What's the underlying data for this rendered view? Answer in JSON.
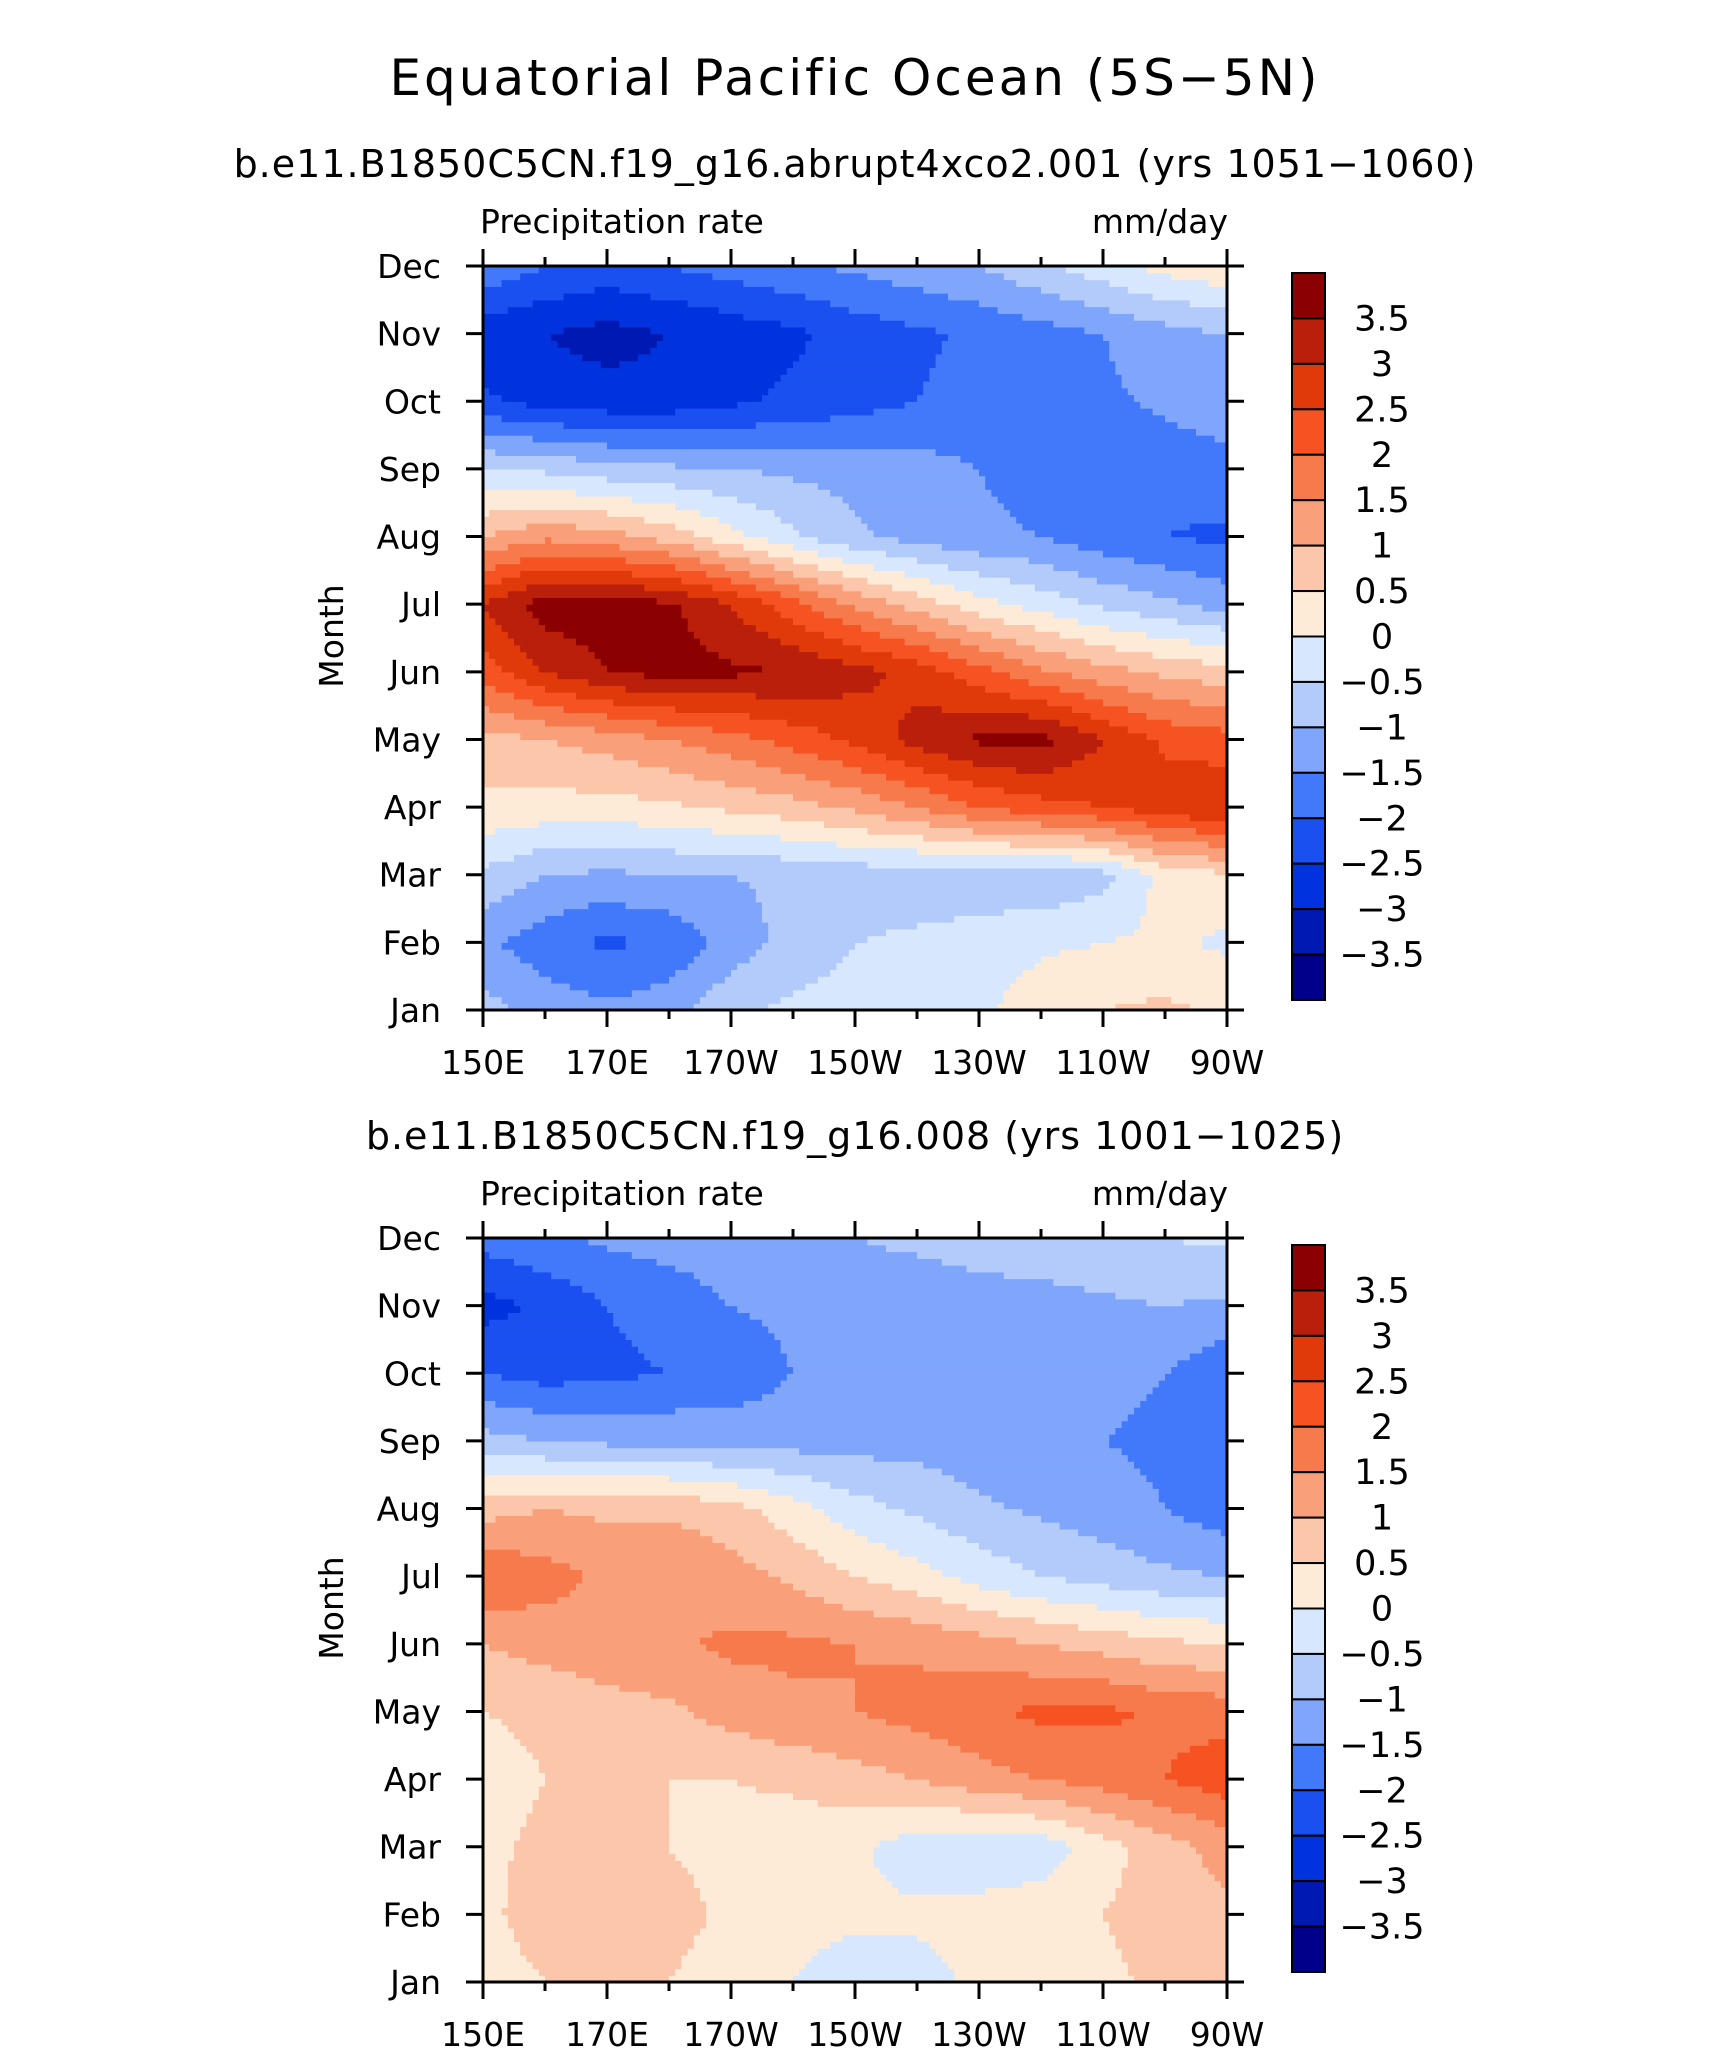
{
  "figure_title": "Equatorial Pacific Ocean (5S−5N)",
  "colors": {
    "levels": [
      "#00008b",
      "#0019b3",
      "#0033dd",
      "#1a4ff0",
      "#4278fa",
      "#7fa6fb",
      "#b3cbfb",
      "#d7e7fd",
      "#fdebd8",
      "#fbc6aa",
      "#f9a07a",
      "#f77a4c",
      "#f65323",
      "#e03a0a",
      "#b91f0a",
      "#8b0000"
    ]
  },
  "chart_data": [
    {
      "type": "heatmap",
      "title": "b.e11.B1850C5CN.f19_g16.abrupt4xco2.001 (yrs 1051−1060)",
      "left_label": "Precipitation rate",
      "right_label": "mm/day",
      "ylabel": "Month",
      "x_ticks": [
        "150E",
        "170E",
        "170W",
        "150W",
        "130W",
        "110W",
        "90W"
      ],
      "y_ticks": [
        "Jan",
        "Feb",
        "Mar",
        "Apr",
        "May",
        "Jun",
        "Jul",
        "Aug",
        "Sep",
        "Oct",
        "Nov",
        "Dec"
      ],
      "x_range_deg_east": [
        150,
        270
      ],
      "y_range_months": [
        1,
        12
      ],
      "colorbar_labels": [
        "3.5",
        "3",
        "2.5",
        "2",
        "1.5",
        "1",
        "0.5",
        "0",
        "−0.5",
        "−1",
        "−1.5",
        "−2",
        "−2.5",
        "−3",
        "−3.5"
      ],
      "grid_x_deg_east": [
        150,
        160,
        170,
        180,
        190,
        200,
        210,
        220,
        230,
        240,
        250,
        260,
        270
      ],
      "values_mm_per_day": [
        [
          -0.8,
          -1.2,
          -1.4,
          -1.2,
          -0.6,
          -0.4,
          -0.3,
          -0.2,
          -0.1,
          0.3,
          0.5,
          0.6,
          0.4
        ],
        [
          -1.4,
          -1.8,
          -2.1,
          -1.9,
          -1.3,
          -0.8,
          -0.5,
          -0.4,
          -0.3,
          -0.1,
          0.0,
          0.1,
          -0.1
        ],
        [
          -0.6,
          -1.0,
          -1.1,
          -1.0,
          -1.0,
          -0.9,
          -0.8,
          -0.8,
          -0.8,
          -0.9,
          -0.7,
          0.2,
          0.4
        ],
        [
          0.4,
          0.3,
          0.3,
          0.4,
          0.6,
          0.8,
          1.1,
          1.5,
          2.0,
          2.3,
          2.5,
          2.8,
          3.0
        ],
        [
          0.8,
          1.0,
          1.2,
          1.5,
          1.8,
          2.2,
          2.6,
          3.2,
          3.6,
          3.7,
          3.0,
          2.4,
          2.2
        ],
        [
          2.2,
          3.0,
          3.5,
          3.7,
          3.6,
          3.5,
          3.2,
          2.8,
          2.2,
          1.6,
          1.2,
          0.9,
          0.7
        ],
        [
          3.0,
          3.8,
          3.8,
          3.6,
          3.0,
          2.2,
          1.4,
          0.8,
          0.2,
          -0.2,
          -0.6,
          -0.9,
          -1.2
        ],
        [
          1.0,
          1.4,
          1.2,
          0.8,
          0.2,
          -0.4,
          -0.9,
          -1.2,
          -1.4,
          -1.5,
          -1.8,
          -2.0,
          -2.1
        ],
        [
          -0.5,
          -0.6,
          -0.8,
          -0.9,
          -1.0,
          -1.1,
          -1.2,
          -1.3,
          -1.5,
          -1.7,
          -1.8,
          -1.8,
          -1.7
        ],
        [
          -2.4,
          -2.7,
          -2.8,
          -2.8,
          -2.6,
          -2.4,
          -2.2,
          -2.0,
          -1.8,
          -1.7,
          -1.6,
          -1.4,
          -1.2
        ],
        [
          -2.8,
          -3.0,
          -3.2,
          -3.0,
          -2.8,
          -2.6,
          -2.3,
          -2.1,
          -1.9,
          -1.7,
          -1.5,
          -1.2,
          -1.0
        ],
        [
          -1.6,
          -2.0,
          -2.2,
          -2.0,
          -1.8,
          -1.6,
          -1.4,
          -1.2,
          -1.0,
          -0.6,
          -0.2,
          0.2,
          0.4
        ]
      ]
    },
    {
      "type": "heatmap",
      "title": "b.e11.B1850C5CN.f19_g16.008 (yrs 1001−1025)",
      "left_label": "Precipitation rate",
      "right_label": "mm/day",
      "ylabel": "Month",
      "x_ticks": [
        "150E",
        "170E",
        "170W",
        "150W",
        "130W",
        "110W",
        "90W"
      ],
      "y_ticks": [
        "Jan",
        "Feb",
        "Mar",
        "Apr",
        "May",
        "Jun",
        "Jul",
        "Aug",
        "Sep",
        "Oct",
        "Nov",
        "Dec"
      ],
      "x_range_deg_east": [
        150,
        270
      ],
      "y_range_months": [
        1,
        12
      ],
      "colorbar_labels": [
        "3.5",
        "3",
        "2.5",
        "2",
        "1.5",
        "1",
        "0.5",
        "0",
        "−0.5",
        "−1",
        "−1.5",
        "−2",
        "−2.5",
        "−3",
        "−3.5"
      ],
      "grid_x_deg_east": [
        150,
        160,
        170,
        180,
        190,
        200,
        210,
        220,
        230,
        240,
        250,
        260,
        270
      ],
      "values_mm_per_day": [
        [
          0.3,
          0.5,
          0.6,
          0.5,
          0.2,
          0.0,
          -0.3,
          -0.2,
          0.1,
          0.3,
          0.4,
          0.6,
          0.8
        ],
        [
          0.4,
          0.7,
          0.8,
          0.7,
          0.4,
          0.2,
          0.1,
          0.1,
          0.2,
          0.3,
          0.5,
          0.7,
          0.9
        ],
        [
          0.4,
          0.6,
          0.7,
          0.5,
          0.3,
          0.2,
          0.1,
          -0.3,
          -0.4,
          -0.3,
          0.3,
          0.8,
          1.2
        ],
        [
          0.3,
          0.5,
          0.6,
          0.5,
          0.5,
          0.6,
          0.8,
          1.0,
          1.3,
          1.5,
          1.7,
          2.0,
          2.3
        ],
        [
          0.5,
          0.6,
          0.8,
          0.9,
          1.2,
          1.4,
          1.5,
          1.7,
          1.9,
          2.1,
          2.1,
          1.9,
          1.8
        ],
        [
          1.0,
          1.2,
          1.3,
          1.4,
          1.6,
          1.6,
          1.5,
          1.4,
          1.2,
          1.0,
          0.8,
          0.6,
          0.5
        ],
        [
          2.0,
          1.7,
          1.4,
          1.5,
          1.2,
          0.9,
          0.5,
          0.2,
          -0.2,
          -0.5,
          -0.7,
          -0.9,
          -1.0
        ],
        [
          0.8,
          1.0,
          0.9,
          0.9,
          0.7,
          0.2,
          -0.3,
          -0.6,
          -0.9,
          -1.1,
          -1.3,
          -1.5,
          -1.8
        ],
        [
          -0.8,
          -1.0,
          -1.1,
          -1.1,
          -1.2,
          -1.2,
          -1.2,
          -1.2,
          -1.3,
          -1.4,
          -1.5,
          -1.6,
          -1.8
        ],
        [
          -2.0,
          -2.2,
          -2.1,
          -2.0,
          -1.8,
          -1.5,
          -1.4,
          -1.3,
          -1.3,
          -1.3,
          -1.4,
          -1.5,
          -1.9
        ],
        [
          -2.7,
          -2.4,
          -2.0,
          -1.8,
          -1.5,
          -1.4,
          -1.3,
          -1.3,
          -1.2,
          -1.2,
          -1.1,
          -1.0,
          -1.1
        ],
        [
          -1.8,
          -1.6,
          -1.4,
          -1.3,
          -1.2,
          -1.1,
          -1.0,
          -0.9,
          -0.8,
          -0.7,
          -0.6,
          -0.5,
          -0.4
        ]
      ]
    }
  ]
}
